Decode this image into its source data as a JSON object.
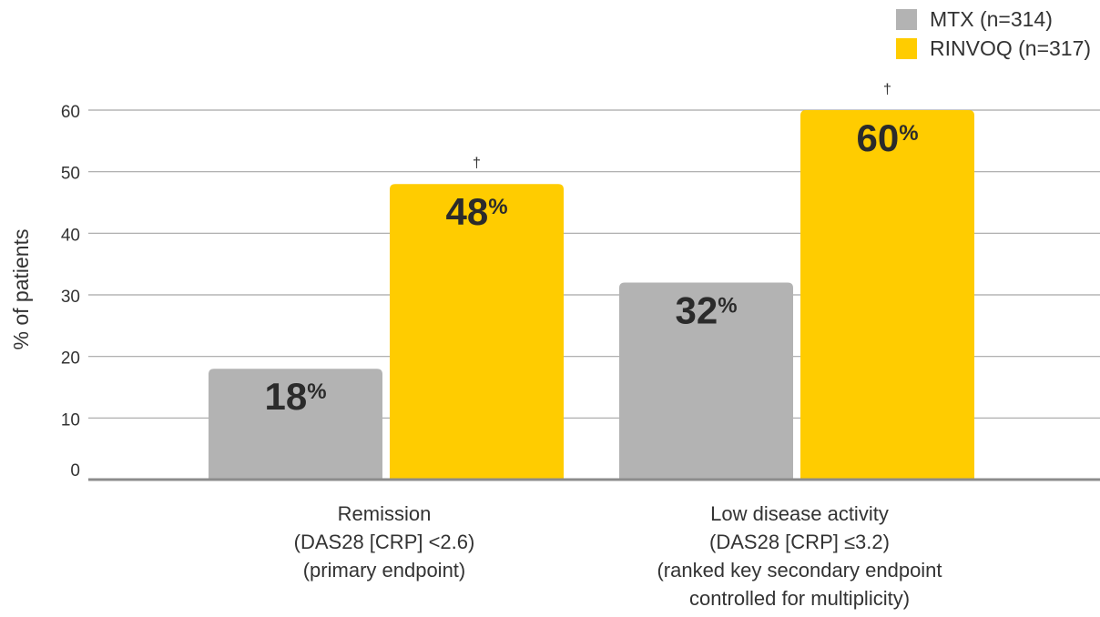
{
  "chart_data": {
    "type": "bar",
    "ylabel": "% of patients",
    "ylim": [
      0,
      60
    ],
    "yticks": [
      0,
      10,
      20,
      30,
      40,
      50,
      60
    ],
    "grid": true,
    "legend_position": "top-right",
    "categories": [
      [
        "Remission",
        "(DAS28 [CRP] <2.6)",
        "(primary endpoint)"
      ],
      [
        "Low disease activity",
        "(DAS28 [CRP] ≤3.2)",
        "(ranked key secondary endpoint",
        "controlled for multiplicity)"
      ]
    ],
    "series": [
      {
        "name": "MTX (n=314)",
        "color": "#b3b3b3",
        "values": [
          18,
          32
        ],
        "labels": [
          "18",
          "32"
        ],
        "marks": [
          "",
          ""
        ]
      },
      {
        "name": "RINVOQ (n=317)",
        "color": "#ffcc00",
        "values": [
          48,
          60
        ],
        "labels": [
          "48",
          "60"
        ],
        "marks": [
          "†",
          "†"
        ]
      }
    ],
    "value_suffix": "%"
  }
}
